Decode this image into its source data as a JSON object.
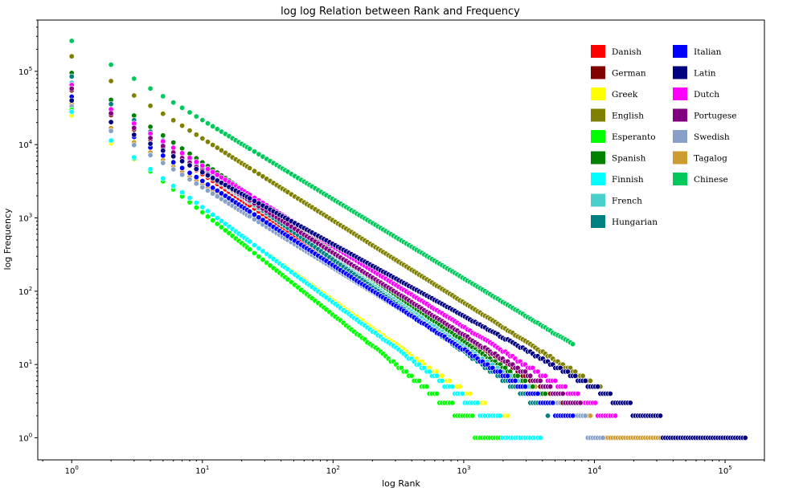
{
  "chart_data": {
    "type": "scatter",
    "title": "log log Relation between Rank and Frequency",
    "xlabel": "log Rank",
    "ylabel": "log Frequency",
    "xscale": "log",
    "yscale": "log",
    "xlim": [
      0.55,
      200000
    ],
    "ylim": [
      0.5,
      500000
    ],
    "x_ticks": [
      {
        "value": 1,
        "base": "10",
        "exp": "0"
      },
      {
        "value": 10,
        "base": "10",
        "exp": "1"
      },
      {
        "value": 100,
        "base": "10",
        "exp": "2"
      },
      {
        "value": 1000,
        "base": "10",
        "exp": "3"
      },
      {
        "value": 10000,
        "base": "10",
        "exp": "4"
      },
      {
        "value": 100000,
        "base": "10",
        "exp": "5"
      }
    ],
    "y_ticks": [
      {
        "value": 1,
        "base": "10",
        "exp": "0"
      },
      {
        "value": 10,
        "base": "10",
        "exp": "1"
      },
      {
        "value": 100,
        "base": "10",
        "exp": "2"
      },
      {
        "value": 1000,
        "base": "10",
        "exp": "3"
      },
      {
        "value": 10000,
        "base": "10",
        "exp": "4"
      },
      {
        "value": 100000,
        "base": "10",
        "exp": "5"
      }
    ],
    "grid": false,
    "legend_position": "upper-right",
    "series": [
      {
        "name": "Danish",
        "color": "#ff0000",
        "f1": 60000,
        "alpha": 1.18,
        "max_rank": 5000
      },
      {
        "name": "German",
        "color": "#800000",
        "f1": 55000,
        "alpha": 1.12,
        "max_rank": 6000
      },
      {
        "name": "Greek",
        "color": "#ffff00",
        "f1": 25000,
        "alpha": 1.26,
        "max_rank": 4000
      },
      {
        "name": "English",
        "color": "#808000",
        "f1": 160000,
        "alpha": 1.12,
        "max_rank": 12000
      },
      {
        "name": "Esperanto",
        "color": "#00ff00",
        "f1": 30000,
        "alpha": 1.4,
        "max_rank": 3000
      },
      {
        "name": "Spanish",
        "color": "#008000",
        "f1": 95000,
        "alpha": 1.22,
        "max_rank": 5000
      },
      {
        "name": "Finnish",
        "color": "#00ffff",
        "f1": 28000,
        "alpha": 1.3,
        "max_rank": 4000
      },
      {
        "name": "French",
        "color": "#48d1cc",
        "f1": 70000,
        "alpha": 1.2,
        "max_rank": 5000
      },
      {
        "name": "Hungarian",
        "color": "#008080",
        "f1": 85000,
        "alpha": 1.25,
        "max_rank": 4500
      },
      {
        "name": "Italian",
        "color": "#0000ff",
        "f1": 45000,
        "alpha": 1.15,
        "max_rank": 7000
      },
      {
        "name": "Latin",
        "color": "#000080",
        "f1": 40000,
        "alpha": 0.98,
        "max_rank": 145000
      },
      {
        "name": "Dutch",
        "color": "#ff00ff",
        "f1": 65000,
        "alpha": 1.1,
        "max_rank": 15000
      },
      {
        "name": "Portugese",
        "color": "#800080",
        "f1": 58000,
        "alpha": 1.12,
        "max_rank": 8000
      },
      {
        "name": "Swedish",
        "color": "#87a0c8",
        "f1": 33000,
        "alpha": 1.1,
        "max_rank": 12000
      },
      {
        "name": "Tagalog",
        "color": "#cd9b30",
        "f1": 36000,
        "alpha": 1.1,
        "max_rank": 110000
      },
      {
        "name": "Chinese",
        "color": "#00c85a",
        "f1": 260000,
        "alpha": 1.08,
        "max_rank": 7000
      }
    ]
  }
}
